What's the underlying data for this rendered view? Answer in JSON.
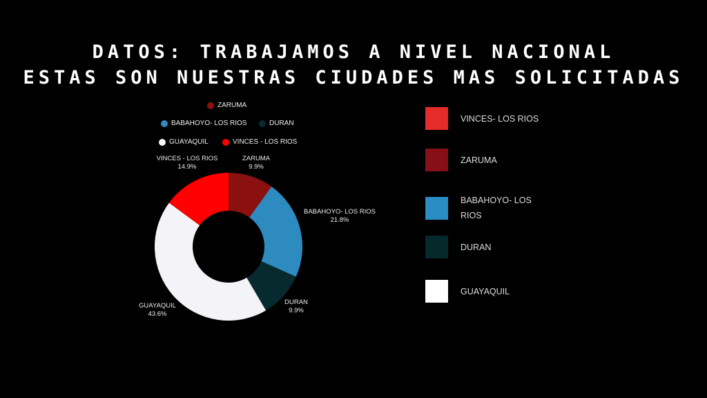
{
  "title": {
    "line1": "DATOS: TRABAJAMOS A NIVEL NACIONAL",
    "line2": "ESTAS SON NUESTRAS CIUDADES MAS SOLICITADAS"
  },
  "chart_data": {
    "type": "pie",
    "donut": true,
    "slices": [
      {
        "label": "ZARUMA",
        "value": 9.9,
        "pct_text": "9.9%",
        "color": "#8b1111"
      },
      {
        "label": "BABAHOYO- LOS RIOS",
        "value": 21.8,
        "pct_text": "21.8%",
        "color": "#2e8bc0"
      },
      {
        "label": "DURAN",
        "value": 9.9,
        "pct_text": "9.9%",
        "color": "#062a2e"
      },
      {
        "label": "GUAYAQUIL",
        "value": 43.6,
        "pct_text": "43.6%",
        "color": "#f4f4f8"
      },
      {
        "label": "VINCES - LOS RIOS",
        "value": 14.9,
        "pct_text": "14.9%",
        "color": "#ff0000"
      }
    ],
    "legend_top": [
      "ZARUMA",
      "BABAHOYO- LOS RIOS",
      "DURAN",
      "GUAYAQUIL",
      "VINCES - LOS RIOS"
    ],
    "legend_right": [
      {
        "label": "VINCES- LOS RIOS",
        "color": "#e62b2b"
      },
      {
        "label": "ZARUMA",
        "color": "#861015"
      },
      {
        "label": "BABAHOYO- LOS RIOS",
        "color": "#2c8cc4"
      },
      {
        "label": "DURAN",
        "color": "#06292c"
      },
      {
        "label": "GUAYAQUIL",
        "color": "#ffffff"
      }
    ]
  }
}
